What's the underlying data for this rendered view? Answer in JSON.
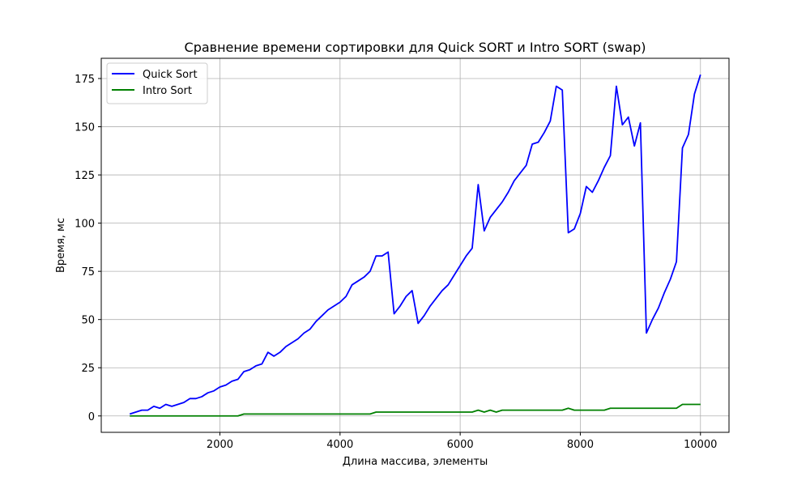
{
  "chart_data": {
    "type": "line",
    "title": "Сравнение времени сортировки для Quick SORT и Intro SORT (swap)",
    "xlabel": "Длина массива, элементы",
    "ylabel": "Время, мс",
    "xlim": [
      25,
      10475
    ],
    "ylim": [
      -8.5,
      185.5
    ],
    "xticks": [
      2000,
      4000,
      6000,
      8000,
      10000
    ],
    "yticks": [
      0,
      25,
      50,
      75,
      100,
      125,
      150,
      175
    ],
    "grid": true,
    "legend_position": "top-left",
    "series": [
      {
        "name": "Quick Sort",
        "color": "#0000ff",
        "x": [
          500,
          600,
          700,
          800,
          900,
          1000,
          1100,
          1200,
          1300,
          1400,
          1500,
          1600,
          1700,
          1800,
          1900,
          2000,
          2100,
          2200,
          2300,
          2400,
          2500,
          2600,
          2700,
          2800,
          2900,
          3000,
          3100,
          3200,
          3300,
          3400,
          3500,
          3600,
          3700,
          3800,
          3900,
          4000,
          4100,
          4200,
          4300,
          4400,
          4500,
          4600,
          4700,
          4800,
          4900,
          5000,
          5100,
          5200,
          5300,
          5400,
          5500,
          5600,
          5700,
          5800,
          5900,
          6000,
          6100,
          6200,
          6300,
          6400,
          6500,
          6600,
          6700,
          6800,
          6900,
          7000,
          7100,
          7200,
          7300,
          7400,
          7500,
          7600,
          7700,
          7800,
          7900,
          8000,
          8100,
          8200,
          8300,
          8400,
          8500,
          8600,
          8700,
          8800,
          8900,
          9000,
          9100,
          9200,
          9300,
          9400,
          9500,
          9600,
          9700,
          9800,
          9900,
          10000
        ],
        "values": [
          1,
          2,
          3,
          3,
          5,
          4,
          6,
          5,
          6,
          7,
          9,
          9,
          10,
          12,
          13,
          15,
          16,
          18,
          19,
          23,
          24,
          26,
          27,
          33,
          31,
          33,
          36,
          38,
          40,
          43,
          45,
          49,
          52,
          55,
          57,
          59,
          62,
          68,
          70,
          72,
          75,
          83,
          83,
          85,
          53,
          57,
          62,
          65,
          48,
          52,
          57,
          61,
          65,
          68,
          73,
          78,
          83,
          87,
          120,
          96,
          103,
          107,
          111,
          116,
          122,
          126,
          130,
          141,
          142,
          147,
          153,
          171,
          169,
          95,
          97,
          105,
          119,
          116,
          122,
          129,
          135,
          171,
          151,
          155,
          140,
          152,
          43,
          50,
          56,
          64,
          71,
          80,
          139,
          146,
          167,
          177
        ]
      },
      {
        "name": "Intro Sort",
        "color": "#008000",
        "x": [
          500,
          600,
          700,
          800,
          900,
          1000,
          1100,
          1200,
          1300,
          1400,
          1500,
          1600,
          1700,
          1800,
          1900,
          2000,
          2100,
          2200,
          2300,
          2400,
          2500,
          2600,
          2700,
          2800,
          2900,
          3000,
          3100,
          3200,
          3300,
          3400,
          3500,
          3600,
          3700,
          3800,
          3900,
          4000,
          4100,
          4200,
          4300,
          4400,
          4500,
          4600,
          4700,
          4800,
          4900,
          5000,
          5100,
          5200,
          5300,
          5400,
          5500,
          5600,
          5700,
          5800,
          5900,
          6000,
          6100,
          6200,
          6300,
          6400,
          6500,
          6600,
          6700,
          6800,
          6900,
          7000,
          7100,
          7200,
          7300,
          7400,
          7500,
          7600,
          7700,
          7800,
          7900,
          8000,
          8100,
          8200,
          8300,
          8400,
          8500,
          8600,
          8700,
          8800,
          8900,
          9000,
          9100,
          9200,
          9300,
          9400,
          9500,
          9600,
          9700,
          9800,
          9900,
          10000
        ],
        "values": [
          0,
          0,
          0,
          0,
          0,
          0,
          0,
          0,
          0,
          0,
          0,
          0,
          0,
          0,
          0,
          0,
          0,
          0,
          0,
          1,
          1,
          1,
          1,
          1,
          1,
          1,
          1,
          1,
          1,
          1,
          1,
          1,
          1,
          1,
          1,
          1,
          1,
          1,
          1,
          1,
          1,
          2,
          2,
          2,
          2,
          2,
          2,
          2,
          2,
          2,
          2,
          2,
          2,
          2,
          2,
          2,
          2,
          2,
          3,
          2,
          3,
          2,
          3,
          3,
          3,
          3,
          3,
          3,
          3,
          3,
          3,
          3,
          3,
          4,
          3,
          3,
          3,
          3,
          3,
          3,
          4,
          4,
          4,
          4,
          4,
          4,
          4,
          4,
          4,
          4,
          4,
          4,
          6,
          6,
          6,
          6
        ]
      }
    ]
  }
}
